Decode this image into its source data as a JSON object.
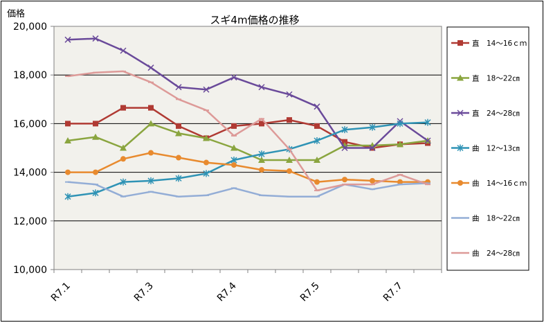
{
  "chart_data": {
    "type": "line",
    "title": "スギ4m価格の推移",
    "ylabel": "価格",
    "xlabel": "",
    "ylim": [
      10000,
      20000
    ],
    "yticks": [
      10000,
      12000,
      14000,
      16000,
      18000,
      20000
    ],
    "ytick_labels": [
      "10,000",
      "12,000",
      "14,000",
      "16,000",
      "18,000",
      "20,000"
    ],
    "x_labels": [
      "R7.1",
      "R7.3",
      "R7.4",
      "R7.5",
      "R7.7"
    ],
    "x_label_positions": [
      0,
      3,
      6,
      9,
      12
    ],
    "grid": "horizontal",
    "legend_position": "right",
    "series": [
      {
        "name": "直　14～16ｃｍ",
        "color": "#b03a33",
        "marker": "square",
        "values": [
          16000,
          16000,
          16650,
          16650,
          15900,
          15400,
          15900,
          16000,
          16150,
          15900,
          15250,
          15000,
          15150,
          15200
        ]
      },
      {
        "name": "直　18～22㎝",
        "color": "#8aa53f",
        "marker": "triangle",
        "values": [
          15300,
          15450,
          15000,
          16000,
          15600,
          15400,
          15000,
          14500,
          14500,
          14500,
          15100,
          15100,
          15150,
          15300
        ]
      },
      {
        "name": "直　24～28㎝",
        "color": "#6a4a9a",
        "marker": "x",
        "values": [
          19450,
          19500,
          19000,
          18300,
          17500,
          17400,
          17900,
          17500,
          17200,
          16700,
          15000,
          15000,
          16100,
          15300
        ]
      },
      {
        "name": "曲　12～13㎝",
        "color": "#2f93b5",
        "marker": "star",
        "values": [
          13000,
          13150,
          13600,
          13650,
          13750,
          13950,
          14500,
          14750,
          14950,
          15300,
          15750,
          15850,
          16000,
          16050
        ]
      },
      {
        "name": "曲　14～16ｃｍ",
        "color": "#e88a2e",
        "marker": "circle",
        "values": [
          14000,
          14000,
          14550,
          14800,
          14600,
          14400,
          14300,
          14100,
          14050,
          13600,
          13700,
          13650,
          13600,
          13600
        ]
      },
      {
        "name": "曲　18～22㎝",
        "color": "#93add6",
        "marker": "dash",
        "values": [
          13600,
          13500,
          13000,
          13200,
          13000,
          13050,
          13350,
          13050,
          13000,
          13000,
          13500,
          13300,
          13500,
          13550
        ]
      },
      {
        "name": "曲　24～28㎝",
        "color": "#dd9a98",
        "marker": "dash",
        "values": [
          17950,
          18100,
          18150,
          17700,
          17000,
          16550,
          15500,
          16200,
          14950,
          13250,
          13500,
          13500,
          13900,
          13500
        ]
      }
    ]
  }
}
